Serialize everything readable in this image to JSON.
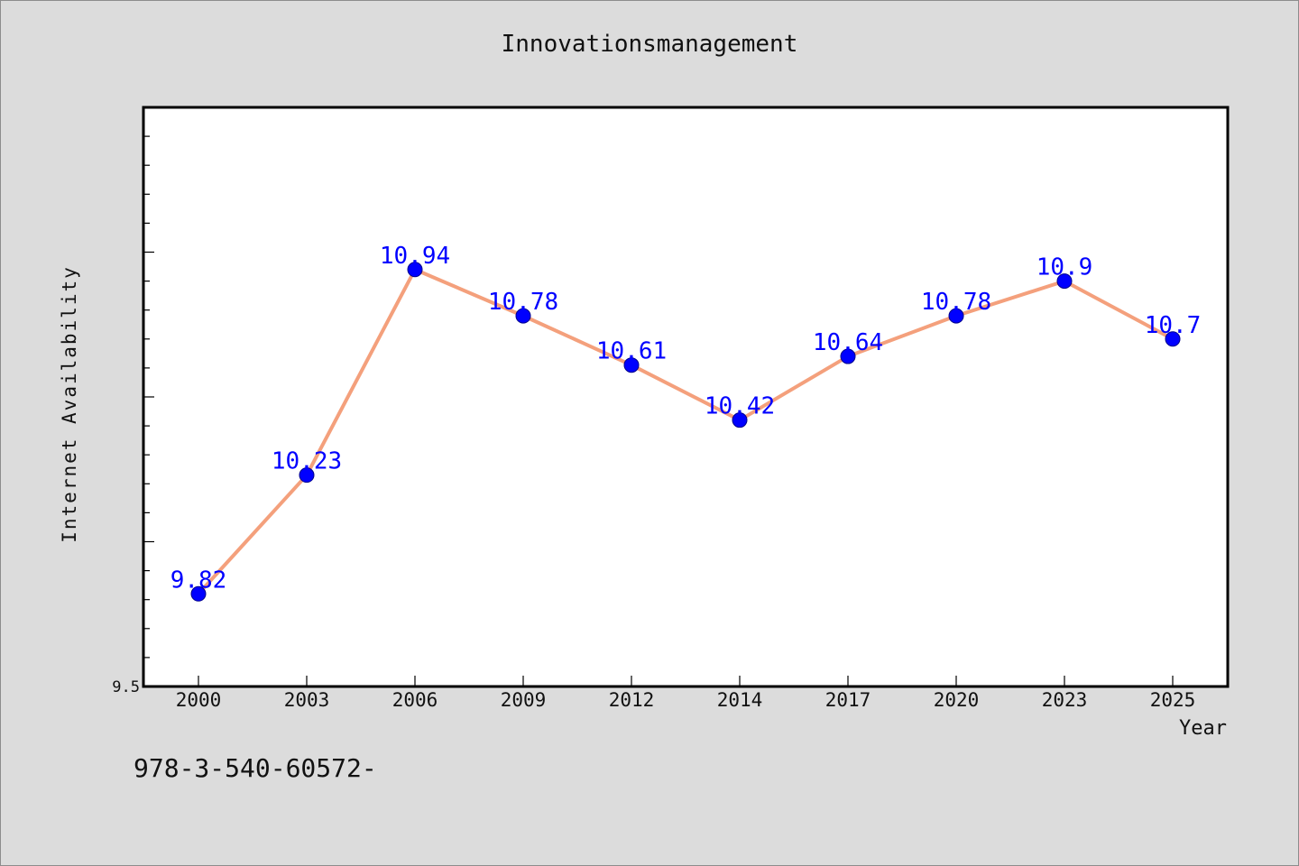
{
  "chart_data": {
    "type": "line",
    "title": "Innovationsmanagement",
    "xlabel": "Year",
    "ylabel": "Internet Availability",
    "categories": [
      "2000",
      "2003",
      "2006",
      "2009",
      "2012",
      "2014",
      "2017",
      "2020",
      "2023",
      "2025"
    ],
    "series": [
      {
        "values": [
          9.82,
          10.23,
          10.94,
          10.78,
          10.61,
          10.42,
          10.64,
          10.78,
          10.9,
          10.7
        ],
        "data_labels": [
          "9.82",
          "10.23",
          "10.94",
          "10.78",
          "10.61",
          "10.42",
          "10.64",
          "10.78",
          "10.9",
          "10.7"
        ],
        "line_color": "#f4a07c",
        "marker_color": "#0000ff"
      }
    ],
    "y_tick_labels": [
      "9.5"
    ],
    "ylim": [
      9.5,
      11.5
    ],
    "grid": false,
    "legend": "none"
  },
  "footer_text": "978-3-540-60572-",
  "colors": {
    "background": "#dcdcdc",
    "plot_background": "#ffffff",
    "data_label": "#0000ff"
  }
}
